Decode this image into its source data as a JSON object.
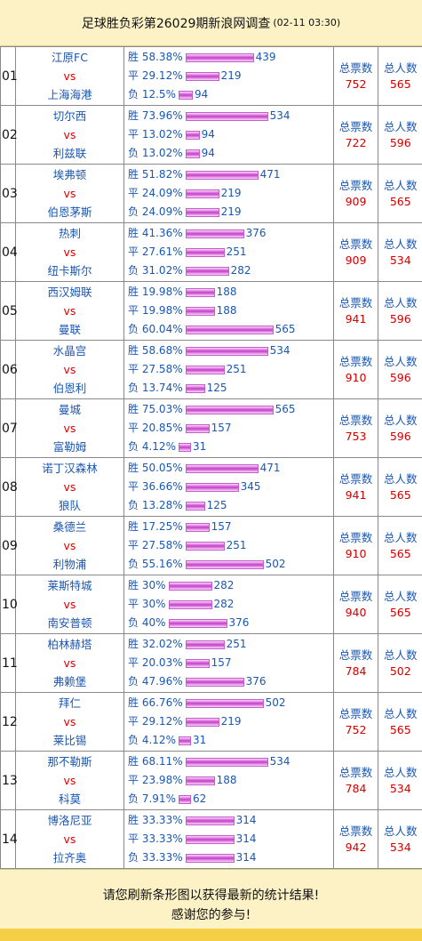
{
  "header": {
    "title": "足球胜负彩第26029期新浪网调查",
    "time": "(02-11 03:30)"
  },
  "labels": {
    "win": "胜",
    "draw": "平",
    "lose": "负",
    "vs": "vs",
    "total_votes": "总票数",
    "total_people": "总人数"
  },
  "colors": {
    "team": "#1a57b0",
    "vs": "#e00000",
    "value": "#d00000",
    "bar": "#c040c8",
    "header_bg": "#fdf1c6",
    "footer_strip": "#f5cf45"
  },
  "matches": [
    {
      "no": "01",
      "home": "江原FC",
      "away": "上海海港",
      "win_pct": "58.38%",
      "win": 439,
      "draw_pct": "29.12%",
      "draw": 219,
      "lose_pct": "12.5%",
      "lose": 94,
      "votes": 752,
      "people": 565
    },
    {
      "no": "02",
      "home": "切尔西",
      "away": "利兹联",
      "win_pct": "73.96%",
      "win": 534,
      "draw_pct": "13.02%",
      "draw": 94,
      "lose_pct": "13.02%",
      "lose": 94,
      "votes": 722,
      "people": 596
    },
    {
      "no": "03",
      "home": "埃弗顿",
      "away": "伯恩茅斯",
      "win_pct": "51.82%",
      "win": 471,
      "draw_pct": "24.09%",
      "draw": 219,
      "lose_pct": "24.09%",
      "lose": 219,
      "votes": 909,
      "people": 565
    },
    {
      "no": "04",
      "home": "热刺",
      "away": "纽卡斯尔",
      "win_pct": "41.36%",
      "win": 376,
      "draw_pct": "27.61%",
      "draw": 251,
      "lose_pct": "31.02%",
      "lose": 282,
      "votes": 909,
      "people": 534
    },
    {
      "no": "05",
      "home": "西汉姆联",
      "away": "曼联",
      "win_pct": "19.98%",
      "win": 188,
      "draw_pct": "19.98%",
      "draw": 188,
      "lose_pct": "60.04%",
      "lose": 565,
      "votes": 941,
      "people": 596
    },
    {
      "no": "06",
      "home": "水晶宫",
      "away": "伯恩利",
      "win_pct": "58.68%",
      "win": 534,
      "draw_pct": "27.58%",
      "draw": 251,
      "lose_pct": "13.74%",
      "lose": 125,
      "votes": 910,
      "people": 596
    },
    {
      "no": "07",
      "home": "曼城",
      "away": "富勒姆",
      "win_pct": "75.03%",
      "win": 565,
      "draw_pct": "20.85%",
      "draw": 157,
      "lose_pct": "4.12%",
      "lose": 31,
      "votes": 753,
      "people": 596
    },
    {
      "no": "08",
      "home": "诺丁汉森林",
      "away": "狼队",
      "win_pct": "50.05%",
      "win": 471,
      "draw_pct": "36.66%",
      "draw": 345,
      "lose_pct": "13.28%",
      "lose": 125,
      "votes": 941,
      "people": 565
    },
    {
      "no": "09",
      "home": "桑德兰",
      "away": "利物浦",
      "win_pct": "17.25%",
      "win": 157,
      "draw_pct": "27.58%",
      "draw": 251,
      "lose_pct": "55.16%",
      "lose": 502,
      "votes": 910,
      "people": 565
    },
    {
      "no": "10",
      "home": "莱斯特城",
      "away": "南安普顿",
      "win_pct": "30%",
      "win": 282,
      "draw_pct": "30%",
      "draw": 282,
      "lose_pct": "40%",
      "lose": 376,
      "votes": 940,
      "people": 565
    },
    {
      "no": "11",
      "home": "柏林赫塔",
      "away": "弗赖堡",
      "win_pct": "32.02%",
      "win": 251,
      "draw_pct": "20.03%",
      "draw": 157,
      "lose_pct": "47.96%",
      "lose": 376,
      "votes": 784,
      "people": 502
    },
    {
      "no": "12",
      "home": "拜仁",
      "away": "莱比锡",
      "win_pct": "66.76%",
      "win": 502,
      "draw_pct": "29.12%",
      "draw": 219,
      "lose_pct": "4.12%",
      "lose": 31,
      "votes": 752,
      "people": 565
    },
    {
      "no": "13",
      "home": "那不勒斯",
      "away": "科莫",
      "win_pct": "68.11%",
      "win": 534,
      "draw_pct": "23.98%",
      "draw": 188,
      "lose_pct": "7.91%",
      "lose": 62,
      "votes": 784,
      "people": 534
    },
    {
      "no": "14",
      "home": "博洛尼亚",
      "away": "拉齐奥",
      "win_pct": "33.33%",
      "win": 314,
      "draw_pct": "33.33%",
      "draw": 314,
      "lose_pct": "33.33%",
      "lose": 314,
      "votes": 942,
      "people": 534
    }
  ],
  "footer": {
    "line1": "请您刷新条形图以获得最新的统计结果!",
    "line2": "感谢您的参与!"
  }
}
